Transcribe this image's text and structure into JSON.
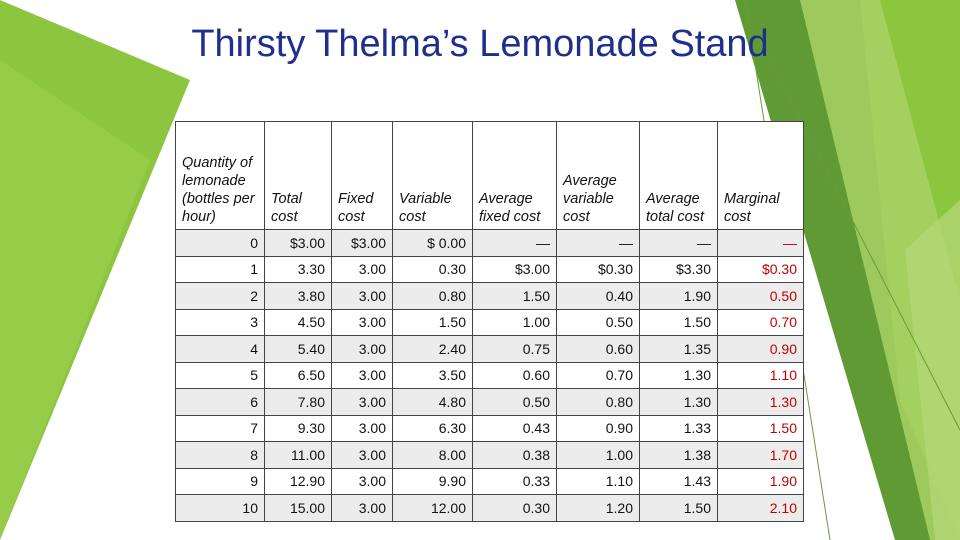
{
  "slide": {
    "title": "Thirsty Thelma’s Lemonade Stand"
  },
  "table": {
    "headers": [
      "Quantity of lemonade (bottles per hour)",
      "Total cost",
      "Fixed cost",
      "Variable cost",
      "Average fixed cost",
      "Average variable cost",
      "Average total cost",
      "Marginal cost"
    ],
    "rows": [
      [
        "0",
        "$3.00",
        "$3.00",
        "$ 0.00",
        "—",
        "—",
        "—",
        "—"
      ],
      [
        "1",
        "3.30",
        "3.00",
        "0.30",
        "$3.00",
        "$0.30",
        "$3.30",
        "$0.30"
      ],
      [
        "2",
        "3.80",
        "3.00",
        "0.80",
        "1.50",
        "0.40",
        "1.90",
        "0.50"
      ],
      [
        "3",
        "4.50",
        "3.00",
        "1.50",
        "1.00",
        "0.50",
        "1.50",
        "0.70"
      ],
      [
        "4",
        "5.40",
        "3.00",
        "2.40",
        "0.75",
        "0.60",
        "1.35",
        "0.90"
      ],
      [
        "5",
        "6.50",
        "3.00",
        "3.50",
        "0.60",
        "0.70",
        "1.30",
        "1.10"
      ],
      [
        "6",
        "7.80",
        "3.00",
        "4.80",
        "0.50",
        "0.80",
        "1.30",
        "1.30"
      ],
      [
        "7",
        "9.30",
        "3.00",
        "6.30",
        "0.43",
        "0.90",
        "1.33",
        "1.50"
      ],
      [
        "8",
        "11.00",
        "3.00",
        "8.00",
        "0.38",
        "1.00",
        "1.38",
        "1.70"
      ],
      [
        "9",
        "12.90",
        "3.00",
        "9.90",
        "0.33",
        "1.10",
        "1.43",
        "1.90"
      ],
      [
        "10",
        "15.00",
        "3.00",
        "12.00",
        "0.30",
        "1.20",
        "1.50",
        "2.10"
      ]
    ],
    "marginal_color": "#c00000"
  },
  "theme": {
    "title_color": "#1f2f8c",
    "accent_green_dark": "#5a8f2a",
    "accent_green": "#8cc63f",
    "accent_green_light": "#b5d97a"
  }
}
